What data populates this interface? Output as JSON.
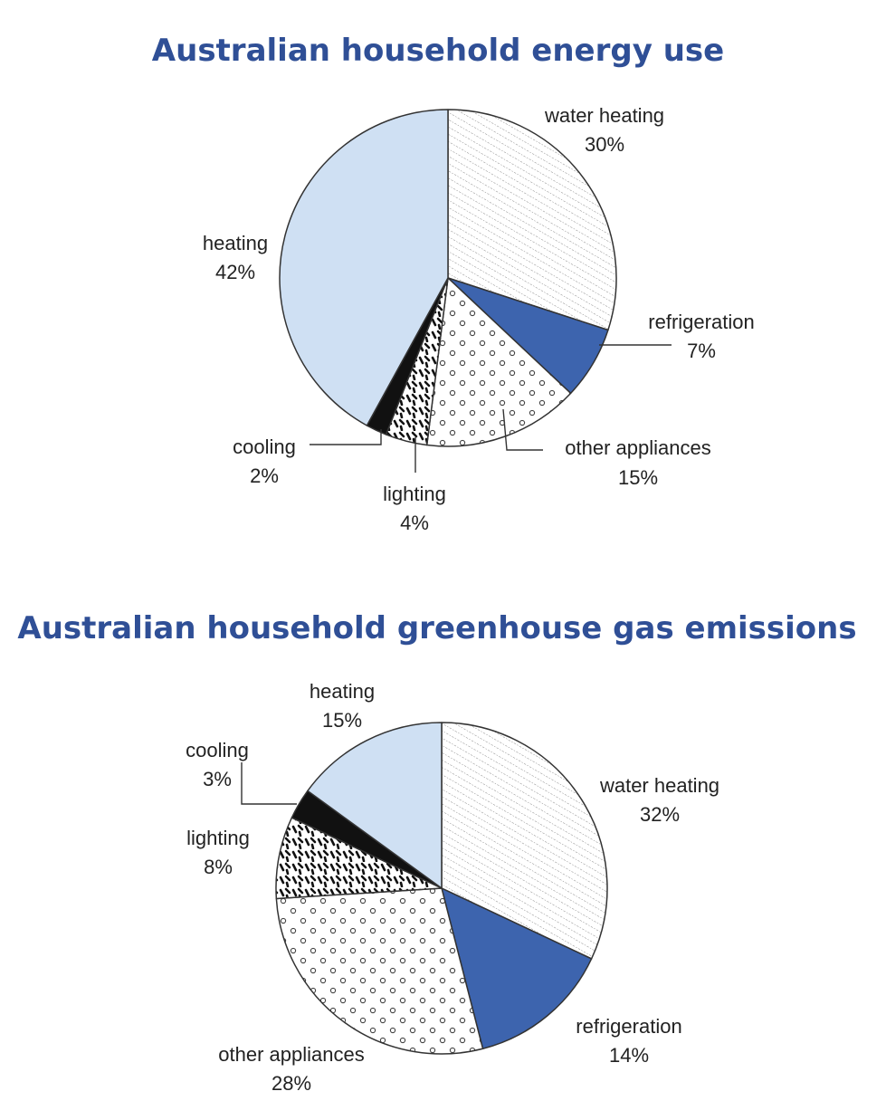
{
  "chart_data": [
    {
      "type": "pie",
      "title": "Australian household energy use",
      "slices": [
        {
          "label": "water heating",
          "value": 30,
          "value_label": "30%",
          "pattern": "diagonal-hatch"
        },
        {
          "label": "refrigeration",
          "value": 7,
          "value_label": "7%",
          "pattern": "solid-blue"
        },
        {
          "label": "other appliances",
          "value": 15,
          "value_label": "15%",
          "pattern": "circles"
        },
        {
          "label": "lighting",
          "value": 4,
          "value_label": "4%",
          "pattern": "dashes"
        },
        {
          "label": "cooling",
          "value": 2,
          "value_label": "2%",
          "pattern": "solid-black"
        },
        {
          "label": "heating",
          "value": 42,
          "value_label": "42%",
          "pattern": "light-blue"
        }
      ]
    },
    {
      "type": "pie",
      "title": "Australian household greenhouse gas emissions",
      "slices": [
        {
          "label": "water heating",
          "value": 32,
          "value_label": "32%",
          "pattern": "diagonal-hatch"
        },
        {
          "label": "refrigeration",
          "value": 14,
          "value_label": "14%",
          "pattern": "solid-blue"
        },
        {
          "label": "other appliances",
          "value": 28,
          "value_label": "28%",
          "pattern": "circles"
        },
        {
          "label": "lighting",
          "value": 8,
          "value_label": "8%",
          "pattern": "dashes"
        },
        {
          "label": "cooling",
          "value": 3,
          "value_label": "3%",
          "pattern": "solid-black"
        },
        {
          "label": "heating",
          "value": 15,
          "value_label": "15%",
          "pattern": "light-blue"
        }
      ]
    }
  ],
  "colors": {
    "title": "#2f4f96",
    "refrigeration": "#3d64ae",
    "heating": "#cfe0f3",
    "cooling": "#111111",
    "outline": "#333333"
  }
}
